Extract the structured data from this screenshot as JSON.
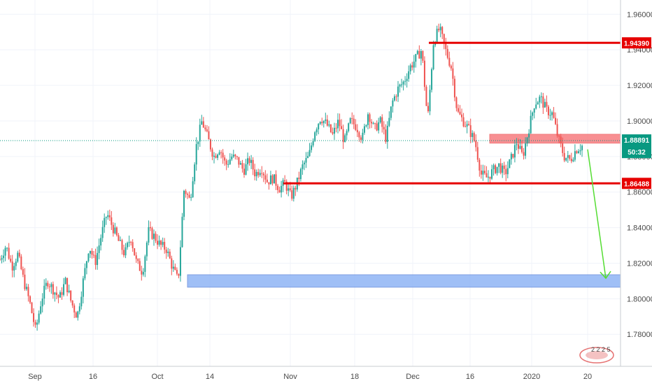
{
  "chart_data": {
    "type": "candlestick",
    "x_tick_labels": [
      "Sep",
      "16",
      "Oct",
      "14",
      "Nov",
      "18",
      "Dec",
      "16",
      "2020",
      "20"
    ],
    "y_tick_labels": [
      "1.96000",
      "1.94000",
      "1.92000",
      "1.90000",
      "1.88000",
      "1.86000",
      "1.84000",
      "1.82000",
      "1.80000",
      "1.78000"
    ],
    "ylim": [
      1.762,
      1.968
    ],
    "grid": true,
    "price_lines": [
      {
        "label": "1.94390",
        "value": 1.9439,
        "color": "#e60000"
      },
      {
        "label": "1.86488",
        "value": 1.86488,
        "color": "#e60000"
      }
    ],
    "current_price": {
      "label": "1.88891",
      "value": 1.88891,
      "countdown": "50:32",
      "color": "#089981"
    },
    "zones": [
      {
        "low": 1.8875,
        "high": 1.8925,
        "color": "#f77c80"
      },
      {
        "low": 1.8065,
        "high": 1.8135,
        "color": "#8fb4f5"
      }
    ],
    "projection_arrow": {
      "from_value": 1.884,
      "to_value": 1.8115,
      "color": "#55dd33"
    },
    "price_path": [
      1.822,
      1.83,
      1.818,
      1.825,
      1.81,
      1.798,
      1.782,
      1.8,
      1.81,
      1.805,
      1.8,
      1.81,
      1.798,
      1.79,
      1.81,
      1.83,
      1.82,
      1.835,
      1.848,
      1.84,
      1.832,
      1.825,
      1.835,
      1.82,
      1.815,
      1.838,
      1.835,
      1.83,
      1.828,
      1.818,
      1.81,
      1.862,
      1.855,
      1.885,
      1.9,
      1.89,
      1.88,
      1.885,
      1.875,
      1.88,
      1.878,
      1.872,
      1.878,
      1.87,
      1.874,
      1.866,
      1.868,
      1.862,
      1.865,
      1.857,
      1.865,
      1.875,
      1.88,
      1.895,
      1.902,
      1.898,
      1.892,
      1.9,
      1.888,
      1.9,
      1.897,
      1.89,
      1.905,
      1.895,
      1.9,
      1.89,
      1.91,
      1.918,
      1.922,
      1.93,
      1.935,
      1.94,
      1.9,
      1.945,
      1.952,
      1.94,
      1.93,
      1.905,
      1.9,
      1.895,
      1.888,
      1.87,
      1.868,
      1.872,
      1.875,
      1.87,
      1.878,
      1.888,
      1.88,
      1.895,
      1.91,
      1.913,
      1.906,
      1.904,
      1.89,
      1.88,
      1.878,
      1.884,
      1.886
    ]
  },
  "watermark_text": "2 2 2 5"
}
